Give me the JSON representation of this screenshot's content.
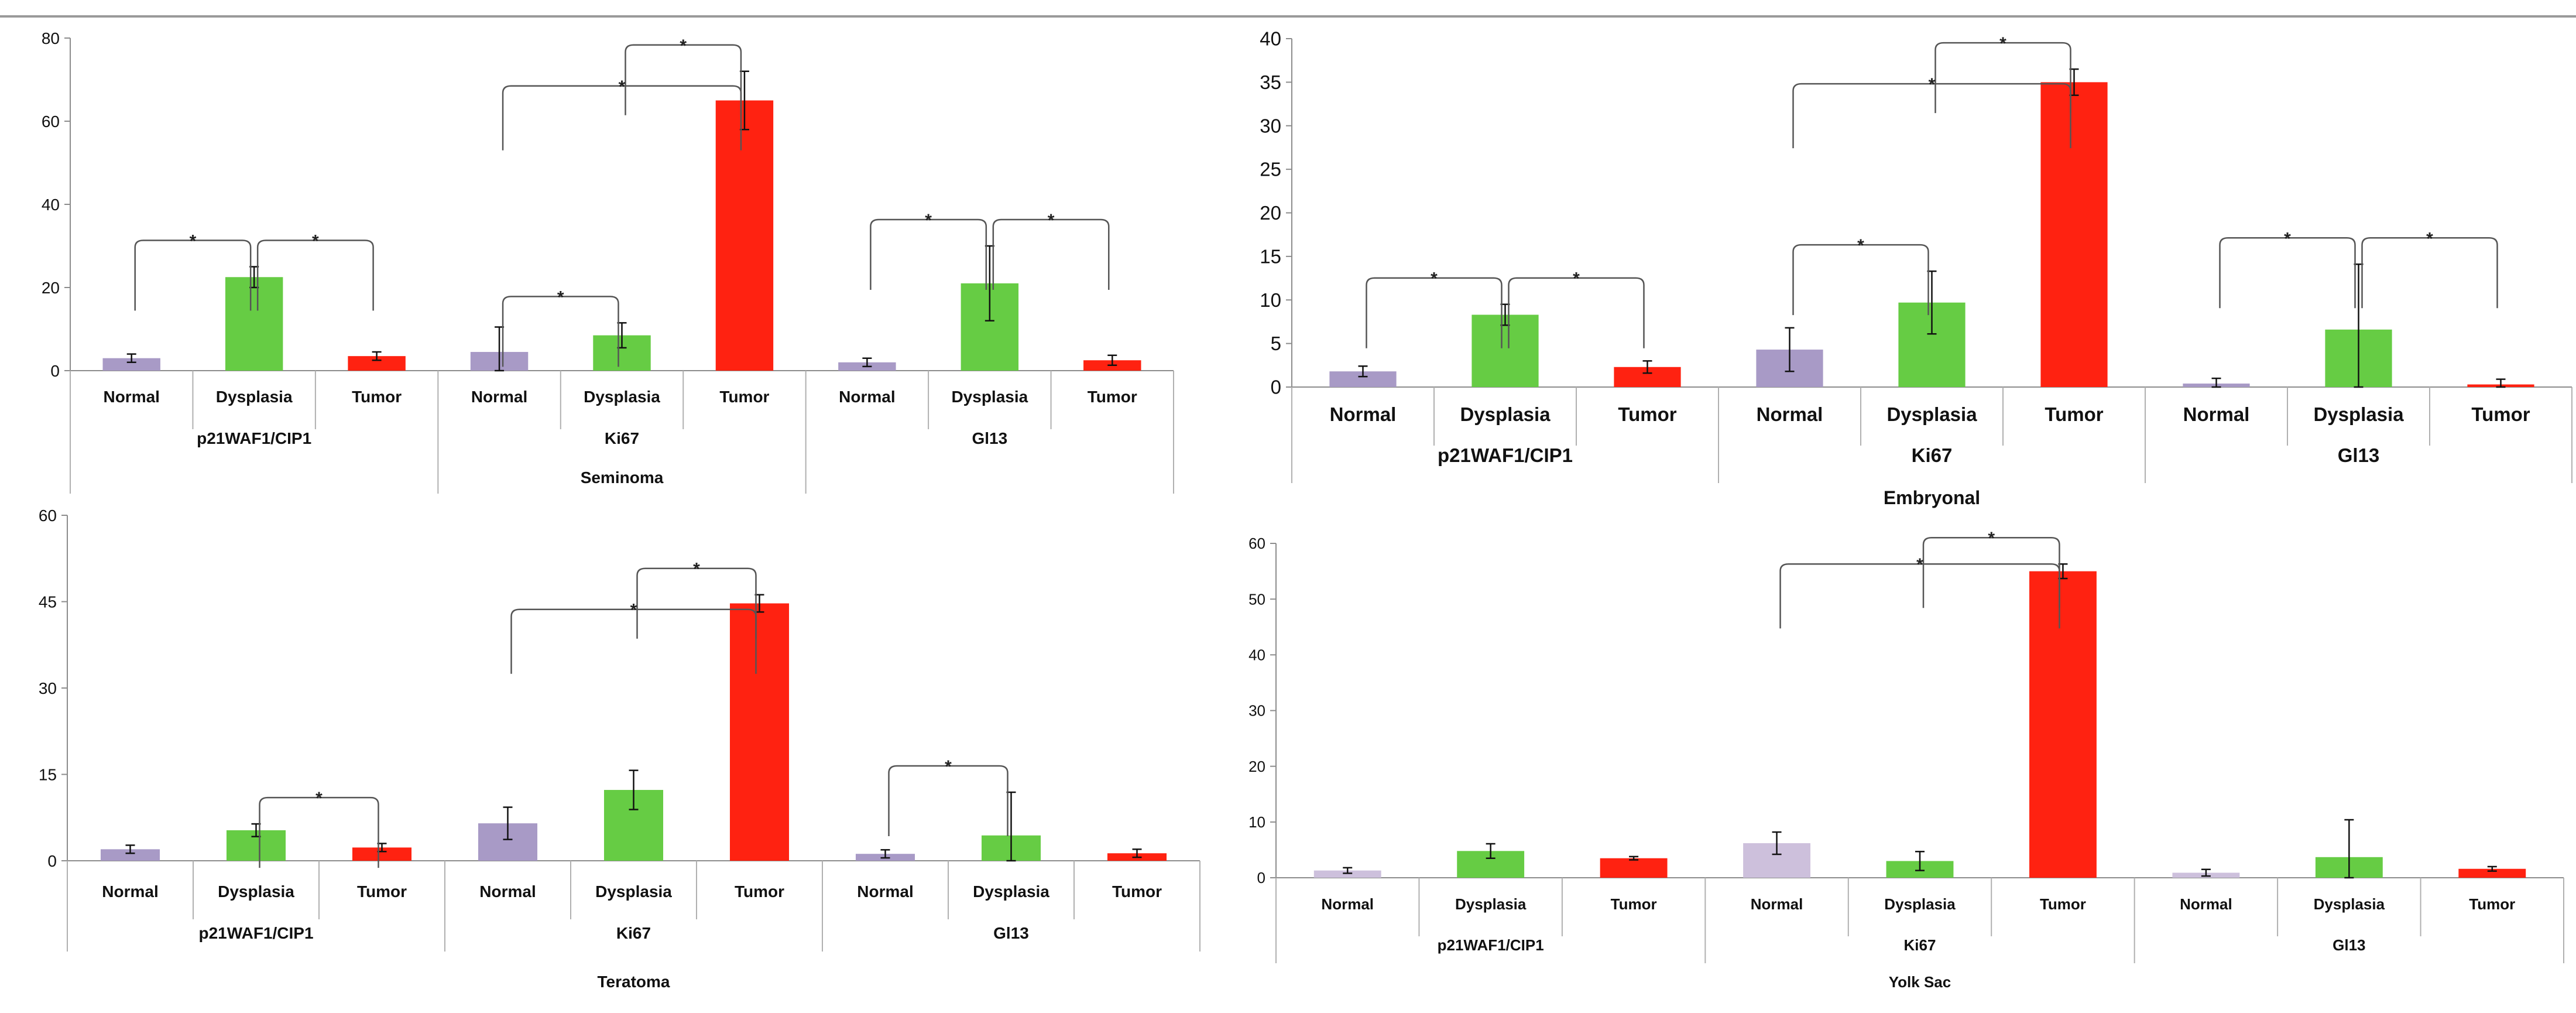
{
  "colors": {
    "normal": "#a89ac6",
    "normal_light": "#cdc0dc",
    "dysplasia": "#66cc44",
    "tumor": "#ff2211",
    "axis": "#8c8c8c",
    "bracket": "#555555",
    "text": "#111111"
  },
  "chart_data": [
    {
      "type": "bar",
      "title": "Seminoma",
      "groups": [
        "p21WAF1/CIP1",
        "Ki67",
        "Gl13"
      ],
      "categories": [
        "Normal",
        "Dysplasia",
        "Tumor"
      ],
      "values": [
        [
          3,
          22.5,
          3.5
        ],
        [
          4.5,
          8.5,
          65
        ],
        [
          2,
          21,
          2.5
        ]
      ],
      "errors": [
        [
          1,
          2.5,
          1
        ],
        [
          6,
          3,
          7
        ],
        [
          1,
          9,
          1.2
        ]
      ],
      "ylim": [
        0,
        80
      ],
      "yticks": [
        0,
        20,
        40,
        60,
        80
      ],
      "grid": false,
      "significance": [
        {
          "group": 0,
          "from": 0,
          "to": 1,
          "label": "*"
        },
        {
          "group": 0,
          "from": 1,
          "to": 2,
          "label": "*"
        },
        {
          "group": 1,
          "from": 0,
          "to": 1,
          "label": "*"
        },
        {
          "group": 1,
          "from": 1,
          "to": 2,
          "label": "*"
        },
        {
          "group": 1,
          "from": 0,
          "to": 2,
          "label": "*"
        },
        {
          "group": 2,
          "from": 0,
          "to": 1,
          "label": "*"
        },
        {
          "group": 2,
          "from": 1,
          "to": 2,
          "label": "*"
        }
      ]
    },
    {
      "type": "bar",
      "title": "Embryonal",
      "groups": [
        "p21WAF1/CIP1",
        "Ki67",
        "Gl13"
      ],
      "categories": [
        "Normal",
        "Dysplasia",
        "Tumor"
      ],
      "values": [
        [
          1.8,
          8.3,
          2.3
        ],
        [
          4.3,
          9.7,
          35
        ],
        [
          0.4,
          6.6,
          0.3
        ]
      ],
      "errors": [
        [
          0.6,
          1.2,
          0.7
        ],
        [
          2.5,
          3.6,
          1.5
        ],
        [
          0.6,
          7.5,
          0.6
        ]
      ],
      "ylim": [
        0,
        40
      ],
      "yticks": [
        0,
        5,
        10,
        15,
        20,
        25,
        30,
        35,
        40
      ],
      "grid": false,
      "significance": [
        {
          "group": 0,
          "from": 0,
          "to": 1,
          "label": "*"
        },
        {
          "group": 0,
          "from": 1,
          "to": 2,
          "label": "*"
        },
        {
          "group": 1,
          "from": 0,
          "to": 1,
          "label": "*"
        },
        {
          "group": 1,
          "from": 1,
          "to": 2,
          "label": "*"
        },
        {
          "group": 1,
          "from": 0,
          "to": 2,
          "label": "*"
        },
        {
          "group": 2,
          "from": 0,
          "to": 1,
          "label": "*"
        },
        {
          "group": 2,
          "from": 1,
          "to": 2,
          "label": "*"
        }
      ]
    },
    {
      "type": "bar",
      "title": "Teratoma",
      "groups": [
        "p21WAF1/CIP1",
        "Ki67",
        "Gl13"
      ],
      "categories": [
        "Normal",
        "Dysplasia",
        "Tumor"
      ],
      "values": [
        [
          2,
          5.3,
          2.3
        ],
        [
          6.5,
          12.3,
          44.7
        ],
        [
          1.2,
          4.4,
          1.3
        ]
      ],
      "errors": [
        [
          0.7,
          1.1,
          0.7
        ],
        [
          2.8,
          3.4,
          1.5
        ],
        [
          0.7,
          7.5,
          0.7
        ]
      ],
      "ylim": [
        0,
        60
      ],
      "yticks": [
        0,
        15,
        30,
        45,
        60
      ],
      "grid": false,
      "significance": [
        {
          "group": 0,
          "from": 1,
          "to": 2,
          "label": "*"
        },
        {
          "group": 1,
          "from": 1,
          "to": 2,
          "label": "*"
        },
        {
          "group": 1,
          "from": 0,
          "to": 2,
          "label": "*"
        },
        {
          "group": 2,
          "from": 0,
          "to": 1,
          "label": "*"
        }
      ]
    },
    {
      "type": "bar",
      "title": "Yolk Sac",
      "groups": [
        "p21WAF1/CIP1",
        "Ki67",
        "Gl13"
      ],
      "categories": [
        "Normal",
        "Dysplasia",
        "Tumor"
      ],
      "values": [
        [
          1.3,
          4.8,
          3.5
        ],
        [
          6.2,
          3,
          55
        ],
        [
          0.9,
          3.7,
          1.6
        ]
      ],
      "errors": [
        [
          0.5,
          1.3,
          0.3
        ],
        [
          2,
          1.7,
          1.3
        ],
        [
          0.6,
          6.7,
          0.4
        ]
      ],
      "ylim": [
        0,
        60
      ],
      "yticks": [
        0,
        10,
        20,
        30,
        40,
        50,
        60
      ],
      "grid": false,
      "significance": [
        {
          "group": 1,
          "from": 1,
          "to": 2,
          "label": "*"
        },
        {
          "group": 1,
          "from": 0,
          "to": 2,
          "label": "*"
        }
      ]
    }
  ]
}
